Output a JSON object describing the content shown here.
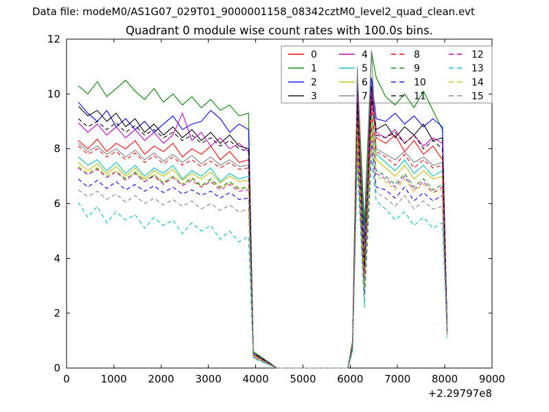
{
  "header": {
    "data_file": "Data file: modeM0/AS1G07_029T01_9000001158_08342cztM0_level2_quad_clean.evt"
  },
  "chart_data": {
    "type": "line",
    "title": "Quadrant 0 module wise count rates with 100.0s bins.",
    "xlabel": "",
    "ylabel": "",
    "x_offset_label": "+2.29797e8",
    "xlim": [
      0,
      9000
    ],
    "ylim": [
      0,
      12
    ],
    "x_ticks": [
      0,
      1000,
      2000,
      3000,
      4000,
      5000,
      6000,
      7000,
      8000,
      9000
    ],
    "y_ticks": [
      0,
      2,
      4,
      6,
      8,
      10,
      12
    ],
    "grid": false,
    "legend_position": "upper center, 4 columns, inside axes",
    "legend_note": "solid lines = modules 0-7, dashed lines = modules 8-15",
    "x": [
      250,
      450,
      650,
      850,
      1050,
      1250,
      1450,
      1650,
      1850,
      2050,
      2250,
      2450,
      2650,
      2850,
      3050,
      3250,
      3450,
      3650,
      3850,
      3950,
      4450,
      4950,
      5450,
      5950,
      6050,
      6150,
      6300,
      6450,
      6550,
      6750,
      6950,
      7150,
      7350,
      7550,
      7750,
      7950,
      8050
    ],
    "series": [
      {
        "name": "0",
        "color": "#ff0000",
        "dash": false,
        "values": [
          8.3,
          8.0,
          8.35,
          7.9,
          8.2,
          8.0,
          8.3,
          7.8,
          8.1,
          7.9,
          8.2,
          7.7,
          8.0,
          7.8,
          8.1,
          7.6,
          7.9,
          7.5,
          7.6,
          0.5,
          0,
          0,
          0,
          0,
          0.8,
          9.5,
          3.9,
          9.8,
          8.4,
          8.2,
          8.5,
          7.9,
          8.3,
          7.8,
          8.1,
          7.6,
          1.35
        ]
      },
      {
        "name": "1",
        "color": "#008000",
        "dash": false,
        "values": [
          10.3,
          10.0,
          10.45,
          9.9,
          10.2,
          10.5,
          10.1,
          9.8,
          10.2,
          9.7,
          10.0,
          9.6,
          9.9,
          9.5,
          9.8,
          9.4,
          9.6,
          9.2,
          9.3,
          0.6,
          0,
          0,
          0,
          0,
          1.0,
          10.8,
          5.2,
          11.55,
          10.6,
          9.9,
          9.6,
          10.0,
          9.5,
          10.1,
          9.4,
          8.7,
          1.4
        ]
      },
      {
        "name": "2",
        "color": "#0000ff",
        "dash": false,
        "values": [
          9.7,
          9.3,
          9.0,
          9.4,
          8.8,
          9.1,
          8.7,
          9.0,
          8.6,
          8.9,
          9.2,
          8.7,
          8.9,
          9.0,
          9.4,
          9.1,
          8.6,
          8.9,
          8.7,
          0.55,
          0,
          0,
          0,
          0,
          0.9,
          10.3,
          4.6,
          10.6,
          9.1,
          9.0,
          9.3,
          8.9,
          9.2,
          8.8,
          9.1,
          8.8,
          1.45
        ]
      },
      {
        "name": "3",
        "color": "#000000",
        "dash": false,
        "values": [
          9.55,
          9.2,
          9.4,
          9.0,
          9.3,
          8.8,
          9.1,
          8.6,
          8.9,
          8.5,
          8.8,
          8.4,
          8.7,
          8.3,
          8.6,
          8.2,
          8.5,
          8.1,
          8.0,
          0.5,
          0,
          0,
          0,
          0,
          0.85,
          10.0,
          4.3,
          10.3,
          8.7,
          8.9,
          8.4,
          8.8,
          8.5,
          8.9,
          8.3,
          8.4,
          1.3
        ]
      },
      {
        "name": "4",
        "color": "#bf00bf",
        "dash": false,
        "values": [
          8.95,
          8.6,
          8.9,
          8.5,
          8.8,
          8.4,
          8.7,
          8.3,
          8.6,
          8.2,
          8.5,
          9.3,
          8.3,
          8.6,
          8.1,
          8.4,
          8.0,
          8.2,
          7.9,
          0.5,
          0,
          0,
          0,
          0,
          0.85,
          9.9,
          4.2,
          10.1,
          8.6,
          8.4,
          8.7,
          8.2,
          8.5,
          8.1,
          8.4,
          8.2,
          1.35
        ]
      },
      {
        "name": "5",
        "color": "#00bfbf",
        "dash": false,
        "values": [
          7.7,
          7.4,
          7.6,
          7.2,
          7.5,
          7.1,
          7.4,
          7.0,
          7.3,
          7.1,
          7.4,
          6.9,
          7.2,
          7.0,
          7.3,
          6.8,
          7.1,
          6.9,
          7.0,
          0.45,
          0,
          0,
          0,
          0,
          0.75,
          9.0,
          3.6,
          9.3,
          7.8,
          7.5,
          7.2,
          7.6,
          7.1,
          7.4,
          7.0,
          7.2,
          1.3
        ]
      },
      {
        "name": "6",
        "color": "#bfbf00",
        "dash": false,
        "values": [
          7.5,
          7.2,
          7.45,
          7.1,
          7.35,
          7.0,
          7.3,
          6.9,
          7.2,
          7.0,
          7.25,
          6.85,
          7.1,
          6.9,
          7.15,
          6.75,
          7.0,
          6.8,
          6.85,
          0.45,
          0,
          0,
          0,
          0,
          0.75,
          8.9,
          3.5,
          9.1,
          7.6,
          7.3,
          7.0,
          7.4,
          6.9,
          7.2,
          6.9,
          7.0,
          1.25
        ]
      },
      {
        "name": "7",
        "color": "#808080",
        "dash": false,
        "values": [
          8.2,
          7.9,
          8.1,
          7.8,
          8.0,
          7.7,
          7.95,
          7.6,
          7.85,
          7.55,
          7.8,
          7.5,
          7.75,
          7.45,
          7.7,
          7.4,
          7.6,
          7.35,
          7.4,
          0.5,
          0,
          0,
          0,
          0,
          0.9,
          11.0,
          4.0,
          11.6,
          8.0,
          7.8,
          7.6,
          7.9,
          7.5,
          7.7,
          7.4,
          7.5,
          1.3
        ]
      },
      {
        "name": "8",
        "color": "#ff0000",
        "dash": true,
        "values": [
          8.1,
          7.8,
          8.0,
          7.7,
          7.9,
          7.6,
          7.85,
          7.5,
          7.75,
          7.45,
          7.7,
          7.4,
          7.6,
          7.35,
          7.55,
          7.3,
          7.5,
          7.25,
          7.3,
          0.5,
          0,
          0,
          0,
          0,
          0.8,
          9.2,
          3.4,
          9.5,
          7.9,
          7.7,
          7.4,
          7.8,
          7.3,
          7.6,
          7.3,
          7.4,
          1.3
        ]
      },
      {
        "name": "9",
        "color": "#008000",
        "dash": true,
        "values": [
          7.35,
          7.1,
          7.3,
          7.0,
          7.2,
          6.9,
          7.15,
          6.8,
          7.05,
          6.75,
          7.0,
          6.7,
          6.95,
          6.65,
          6.9,
          6.6,
          6.8,
          6.55,
          6.6,
          0.45,
          0,
          0,
          0,
          0,
          0.75,
          8.6,
          3.1,
          8.8,
          7.2,
          7.0,
          6.7,
          7.1,
          6.6,
          6.9,
          6.5,
          6.7,
          1.25
        ]
      },
      {
        "name": "10",
        "color": "#0000ff",
        "dash": true,
        "values": [
          6.9,
          6.6,
          6.85,
          6.55,
          6.8,
          6.5,
          6.7,
          6.45,
          6.65,
          6.4,
          6.6,
          6.35,
          6.5,
          6.3,
          6.45,
          6.2,
          6.4,
          6.15,
          6.2,
          0.4,
          0,
          0,
          0,
          0,
          0.7,
          8.1,
          2.7,
          8.3,
          6.6,
          6.5,
          6.2,
          6.6,
          6.1,
          6.4,
          6.1,
          6.3,
          1.2
        ]
      },
      {
        "name": "11",
        "color": "#000000",
        "dash": true,
        "values": [
          9.1,
          8.8,
          9.0,
          8.7,
          8.95,
          8.6,
          8.85,
          8.5,
          8.7,
          8.4,
          8.6,
          8.3,
          8.5,
          8.2,
          8.4,
          8.1,
          8.3,
          8.0,
          7.9,
          0.55,
          0,
          0,
          0,
          0,
          0.85,
          9.7,
          3.7,
          9.9,
          8.5,
          8.4,
          8.6,
          8.2,
          8.5,
          8.0,
          8.3,
          8.0,
          1.35
        ]
      },
      {
        "name": "12",
        "color": "#bf00bf",
        "dash": true,
        "values": [
          7.3,
          7.05,
          7.25,
          6.95,
          7.15,
          6.85,
          7.1,
          6.8,
          7.0,
          6.7,
          6.95,
          6.65,
          6.85,
          6.6,
          6.8,
          6.5,
          6.7,
          6.45,
          6.5,
          0.45,
          0,
          0,
          0,
          0,
          0.75,
          8.5,
          3.0,
          8.7,
          7.1,
          6.9,
          6.6,
          7.0,
          6.5,
          6.8,
          6.4,
          6.6,
          1.25
        ]
      },
      {
        "name": "13",
        "color": "#00bfbf",
        "dash": true,
        "values": [
          6.05,
          5.5,
          5.9,
          5.3,
          5.7,
          5.4,
          5.6,
          5.1,
          5.5,
          5.2,
          5.4,
          4.9,
          5.3,
          5.0,
          5.2,
          4.7,
          5.0,
          4.6,
          4.8,
          0.35,
          0,
          0,
          0,
          0,
          0.6,
          7.4,
          2.2,
          7.6,
          6.1,
          5.8,
          5.4,
          5.7,
          5.2,
          5.5,
          5.1,
          5.3,
          1.1
        ]
      },
      {
        "name": "14",
        "color": "#bfbf00",
        "dash": true,
        "values": [
          7.35,
          7.1,
          7.28,
          7.0,
          7.2,
          6.92,
          7.12,
          6.85,
          7.05,
          6.78,
          7.0,
          6.7,
          6.9,
          6.62,
          6.85,
          6.55,
          6.75,
          6.5,
          6.6,
          0.45,
          0,
          0,
          0,
          0,
          0.75,
          8.4,
          2.9,
          8.6,
          7.0,
          6.8,
          6.5,
          6.9,
          6.45,
          6.7,
          6.4,
          6.5,
          1.2
        ]
      },
      {
        "name": "15",
        "color": "#808080",
        "dash": true,
        "values": [
          6.5,
          6.25,
          6.45,
          6.15,
          6.35,
          6.05,
          6.3,
          6.0,
          6.2,
          5.95,
          6.15,
          5.9,
          6.1,
          5.8,
          6.0,
          5.75,
          5.95,
          5.7,
          5.8,
          0.4,
          0,
          0,
          0,
          0,
          0.7,
          7.8,
          2.5,
          8.0,
          6.4,
          6.2,
          5.9,
          6.3,
          5.8,
          6.1,
          5.8,
          5.9,
          1.2
        ]
      }
    ]
  }
}
